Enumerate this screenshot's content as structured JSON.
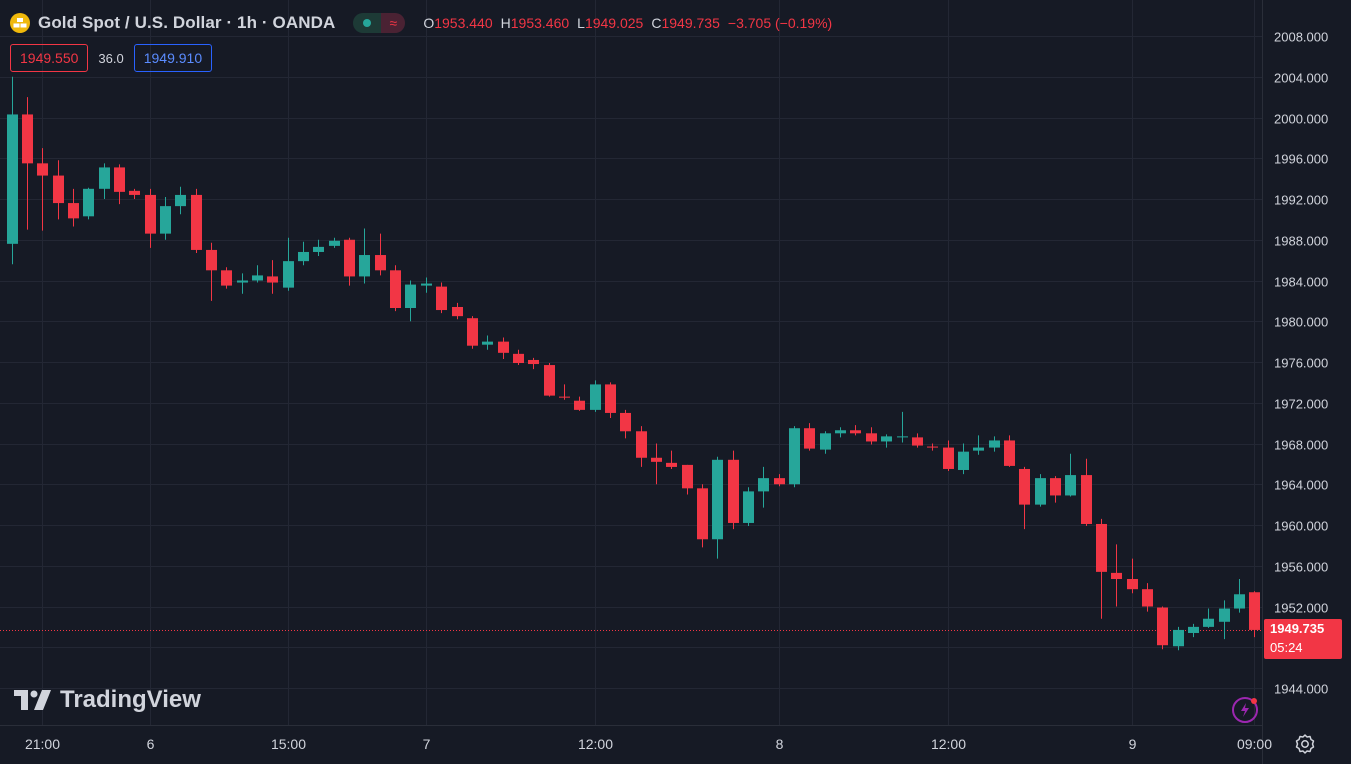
{
  "header": {
    "title": "Gold Spot / U.S. Dollar · 1h · OANDA",
    "o_label": "O",
    "o": "1953.440",
    "h_label": "H",
    "h": "1953.460",
    "l_label": "L",
    "l": "1949.025",
    "c_label": "C",
    "c": "1949.735",
    "change": "−3.705 (−0.19%)",
    "wave_glyph": "≈"
  },
  "quote": {
    "sell": "1949.550",
    "spread": "36.0",
    "buy": "1949.910"
  },
  "last_price": {
    "value": "1949.735",
    "countdown": "05:24"
  },
  "logo": {
    "text": "TradingView"
  },
  "icons": {
    "symbol": "gold-bars-icon",
    "settings": "gear-icon",
    "alerts": "lightning-icon"
  },
  "colors": {
    "up": "#26A69A",
    "down": "#F23645",
    "background": "#161A25",
    "grid": "#232734",
    "text": "#D1D4DC"
  },
  "chart_data": {
    "type": "candlestick",
    "ylim": [
      1942.0,
      2010.0
    ],
    "yticks": [
      "2008.000",
      "2004.000",
      "2000.000",
      "1996.000",
      "1992.000",
      "1988.000",
      "1984.000",
      "1980.000",
      "1976.000",
      "1972.000",
      "1968.000",
      "1964.000",
      "1960.000",
      "1956.000",
      "1952.000",
      "1944.000"
    ],
    "ytick_values": [
      2008,
      2004,
      2000,
      1996,
      1992,
      1988,
      1984,
      1980,
      1976,
      1972,
      1968,
      1964,
      1960,
      1956,
      1952,
      1944
    ],
    "xticks": [
      {
        "label": "21:00",
        "index": 2
      },
      {
        "label": "6",
        "index": 9
      },
      {
        "label": "15:00",
        "index": 18
      },
      {
        "label": "7",
        "index": 27
      },
      {
        "label": "12:00",
        "index": 38
      },
      {
        "label": "8",
        "index": 50
      },
      {
        "label": "12:00",
        "index": 61
      },
      {
        "label": "9",
        "index": 73
      },
      {
        "label": "09:00",
        "index": 81
      }
    ],
    "candles": [
      [
        1987.6,
        2004.0,
        1985.6,
        2000.3
      ],
      [
        2000.3,
        2002.0,
        1989.0,
        1995.5
      ],
      [
        1995.5,
        1997.0,
        1988.9,
        1994.3
      ],
      [
        1994.3,
        1995.8,
        1990.0,
        1991.6
      ],
      [
        1991.6,
        1993.0,
        1989.3,
        1990.1
      ],
      [
        1990.3,
        1993.1,
        1990.0,
        1993.0
      ],
      [
        1993.0,
        1995.5,
        1992.0,
        1995.1
      ],
      [
        1995.1,
        1995.4,
        1991.5,
        1992.7
      ],
      [
        1992.8,
        1993.0,
        1992.0,
        1992.4
      ],
      [
        1992.4,
        1993.0,
        1987.2,
        1988.6
      ],
      [
        1988.6,
        1992.2,
        1988.0,
        1991.3
      ],
      [
        1991.3,
        1993.2,
        1990.5,
        1992.4
      ],
      [
        1992.4,
        1993.0,
        1986.7,
        1987.0
      ],
      [
        1987.0,
        1987.7,
        1982.0,
        1985.0
      ],
      [
        1985.0,
        1985.3,
        1983.2,
        1983.5
      ],
      [
        1983.8,
        1984.7,
        1982.7,
        1984.0
      ],
      [
        1984.0,
        1985.5,
        1983.8,
        1984.5
      ],
      [
        1984.4,
        1986.0,
        1982.7,
        1983.8
      ],
      [
        1983.3,
        1988.2,
        1983.0,
        1985.9
      ],
      [
        1985.9,
        1987.8,
        1985.5,
        1986.8
      ],
      [
        1986.8,
        1988.0,
        1986.4,
        1987.3
      ],
      [
        1987.4,
        1988.2,
        1987.2,
        1987.9
      ],
      [
        1988.0,
        1988.2,
        1983.5,
        1984.4
      ],
      [
        1984.4,
        1989.1,
        1983.7,
        1986.5
      ],
      [
        1986.5,
        1988.6,
        1984.5,
        1985.0
      ],
      [
        1985.0,
        1985.5,
        1981.0,
        1981.3
      ],
      [
        1981.3,
        1984.0,
        1980.0,
        1983.6
      ],
      [
        1983.5,
        1984.3,
        1982.8,
        1983.7
      ],
      [
        1983.4,
        1983.8,
        1980.8,
        1981.1
      ],
      [
        1981.4,
        1981.8,
        1980.2,
        1980.5
      ],
      [
        1980.3,
        1980.5,
        1977.3,
        1977.6
      ],
      [
        1977.7,
        1978.6,
        1977.2,
        1978.0
      ],
      [
        1978.0,
        1978.4,
        1976.3,
        1976.9
      ],
      [
        1976.8,
        1977.2,
        1975.7,
        1975.9
      ],
      [
        1976.2,
        1976.4,
        1975.3,
        1975.8
      ],
      [
        1975.7,
        1975.9,
        1972.6,
        1972.7
      ],
      [
        1972.6,
        1973.8,
        1972.3,
        1972.5
      ],
      [
        1972.2,
        1972.6,
        1971.2,
        1971.3
      ],
      [
        1971.3,
        1974.2,
        1971.1,
        1973.8
      ],
      [
        1973.8,
        1974.0,
        1970.5,
        1971.0
      ],
      [
        1971.0,
        1971.3,
        1968.5,
        1969.2
      ],
      [
        1969.2,
        1969.7,
        1965.7,
        1966.6
      ],
      [
        1966.6,
        1968.0,
        1964.0,
        1966.2
      ],
      [
        1966.1,
        1967.3,
        1965.5,
        1965.7
      ],
      [
        1965.9,
        1965.9,
        1963.0,
        1963.6
      ],
      [
        1963.6,
        1964.0,
        1957.8,
        1958.6
      ],
      [
        1958.6,
        1966.7,
        1956.7,
        1966.4
      ],
      [
        1966.4,
        1967.3,
        1959.6,
        1960.2
      ],
      [
        1960.2,
        1963.7,
        1959.9,
        1963.3
      ],
      [
        1963.3,
        1965.7,
        1961.7,
        1964.6
      ],
      [
        1964.6,
        1965.0,
        1963.8,
        1964.0
      ],
      [
        1964.0,
        1969.7,
        1963.7,
        1969.5
      ],
      [
        1969.5,
        1970.0,
        1967.3,
        1967.5
      ],
      [
        1967.4,
        1969.2,
        1967.0,
        1969.0
      ],
      [
        1969.0,
        1969.6,
        1968.6,
        1969.3
      ],
      [
        1969.3,
        1969.8,
        1968.8,
        1969.0
      ],
      [
        1969.0,
        1969.6,
        1967.9,
        1968.2
      ],
      [
        1968.2,
        1968.9,
        1967.6,
        1968.7
      ],
      [
        1968.6,
        1971.1,
        1968.1,
        1968.7
      ],
      [
        1968.6,
        1969.0,
        1967.6,
        1967.8
      ],
      [
        1967.7,
        1968.0,
        1967.3,
        1967.6
      ],
      [
        1967.6,
        1968.3,
        1965.3,
        1965.5
      ],
      [
        1965.4,
        1968.0,
        1965.0,
        1967.2
      ],
      [
        1967.3,
        1968.8,
        1966.9,
        1967.6
      ],
      [
        1967.6,
        1968.7,
        1967.2,
        1968.3
      ],
      [
        1968.3,
        1968.8,
        1965.7,
        1965.8
      ],
      [
        1965.5,
        1965.7,
        1959.6,
        1962.0
      ],
      [
        1962.0,
        1965.0,
        1961.8,
        1964.6
      ],
      [
        1964.6,
        1964.8,
        1962.2,
        1962.9
      ],
      [
        1962.9,
        1967.0,
        1962.8,
        1964.9
      ],
      [
        1964.9,
        1966.5,
        1959.9,
        1960.1
      ],
      [
        1960.1,
        1960.6,
        1950.8,
        1955.4
      ],
      [
        1955.3,
        1958.1,
        1952.0,
        1954.7
      ],
      [
        1954.7,
        1956.7,
        1953.3,
        1953.7
      ],
      [
        1953.7,
        1954.3,
        1951.5,
        1952.0
      ],
      [
        1951.9,
        1952.0,
        1947.8,
        1948.2
      ],
      [
        1948.1,
        1950.0,
        1947.7,
        1949.7
      ],
      [
        1949.4,
        1950.3,
        1949.0,
        1950.0
      ],
      [
        1950.0,
        1951.8,
        1949.9,
        1950.8
      ],
      [
        1950.5,
        1952.6,
        1948.8,
        1951.8
      ],
      [
        1951.8,
        1954.7,
        1951.4,
        1953.2
      ],
      [
        1953.4,
        1953.5,
        1949.0,
        1949.7
      ]
    ]
  }
}
